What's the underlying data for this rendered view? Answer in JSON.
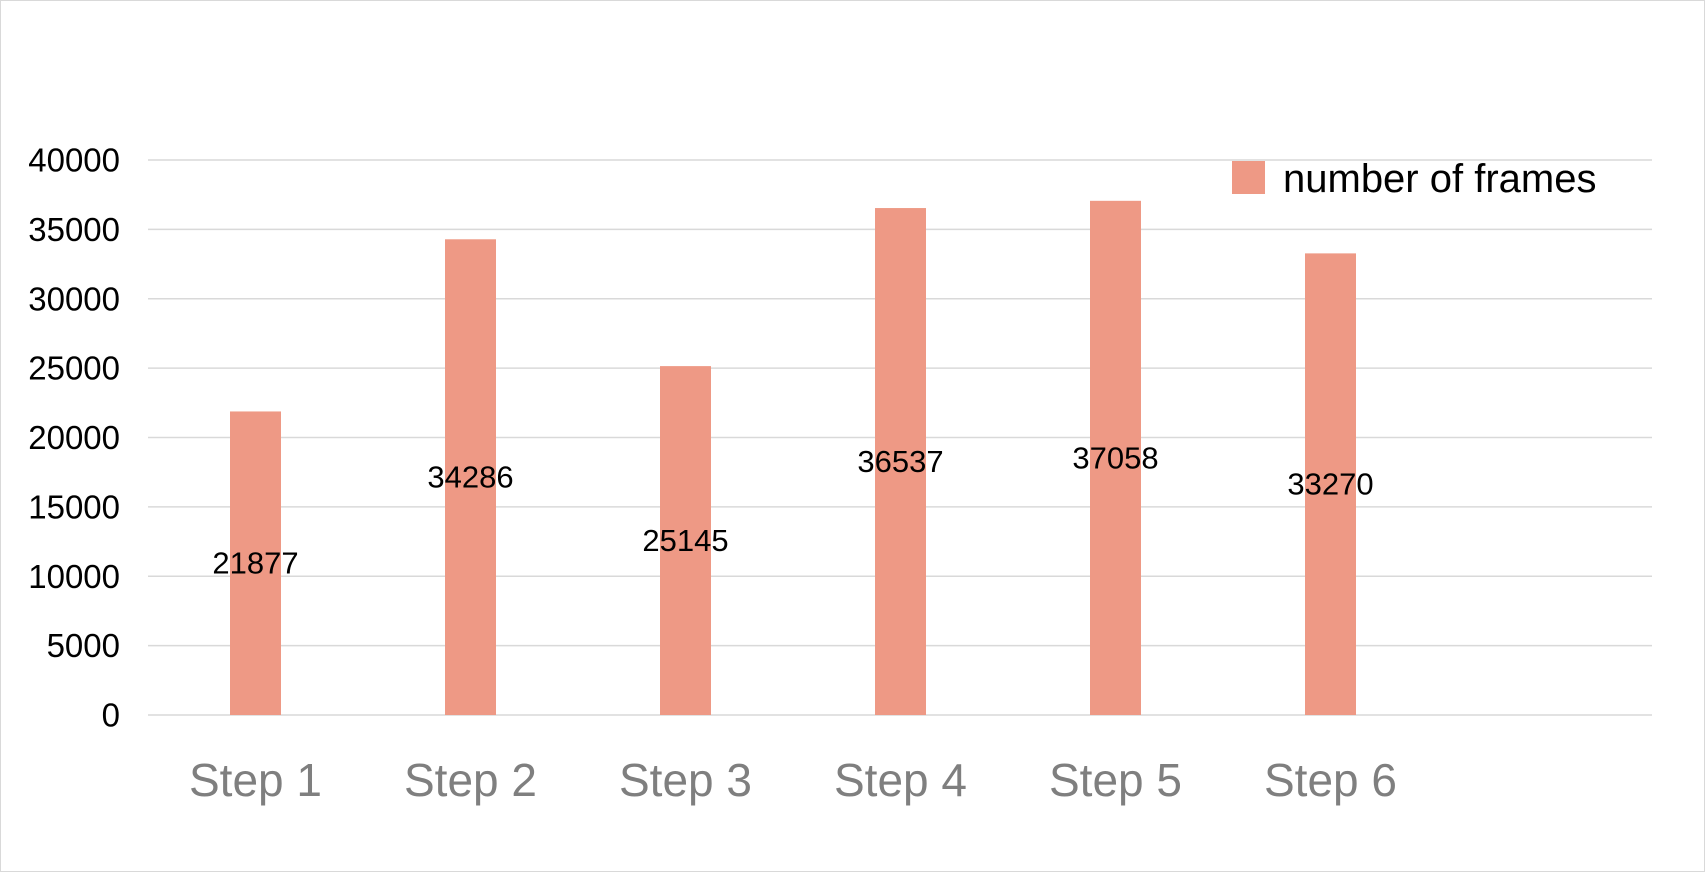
{
  "chart_data": {
    "type": "bar",
    "title": "",
    "xlabel": "",
    "ylabel": "",
    "categories": [
      "Step 1",
      "Step 2",
      "Step 3",
      "Step 4",
      "Step 5",
      "Step 6"
    ],
    "series": [
      {
        "name": "number of frames",
        "color": "#ee9985",
        "values": [
          21877,
          34286,
          25145,
          36537,
          37058,
          33270
        ],
        "data_labels": [
          "21877",
          "34286",
          "25145",
          "36537",
          "37058",
          "33270"
        ]
      }
    ],
    "ylim": [
      0,
      40000
    ],
    "y_ticks": [
      0,
      5000,
      10000,
      15000,
      20000,
      25000,
      30000,
      35000,
      40000
    ],
    "y_tick_labels": [
      "0",
      "5000",
      "10000",
      "15000",
      "20000",
      "25000",
      "30000",
      "35000",
      "40000"
    ],
    "grid": true,
    "legend_position": "top-right",
    "colors": {
      "bar": "#ee9985",
      "grid": "#d9d9d9",
      "x_tick_text": "#7f7f7f",
      "y_tick_text": "#000000"
    }
  }
}
